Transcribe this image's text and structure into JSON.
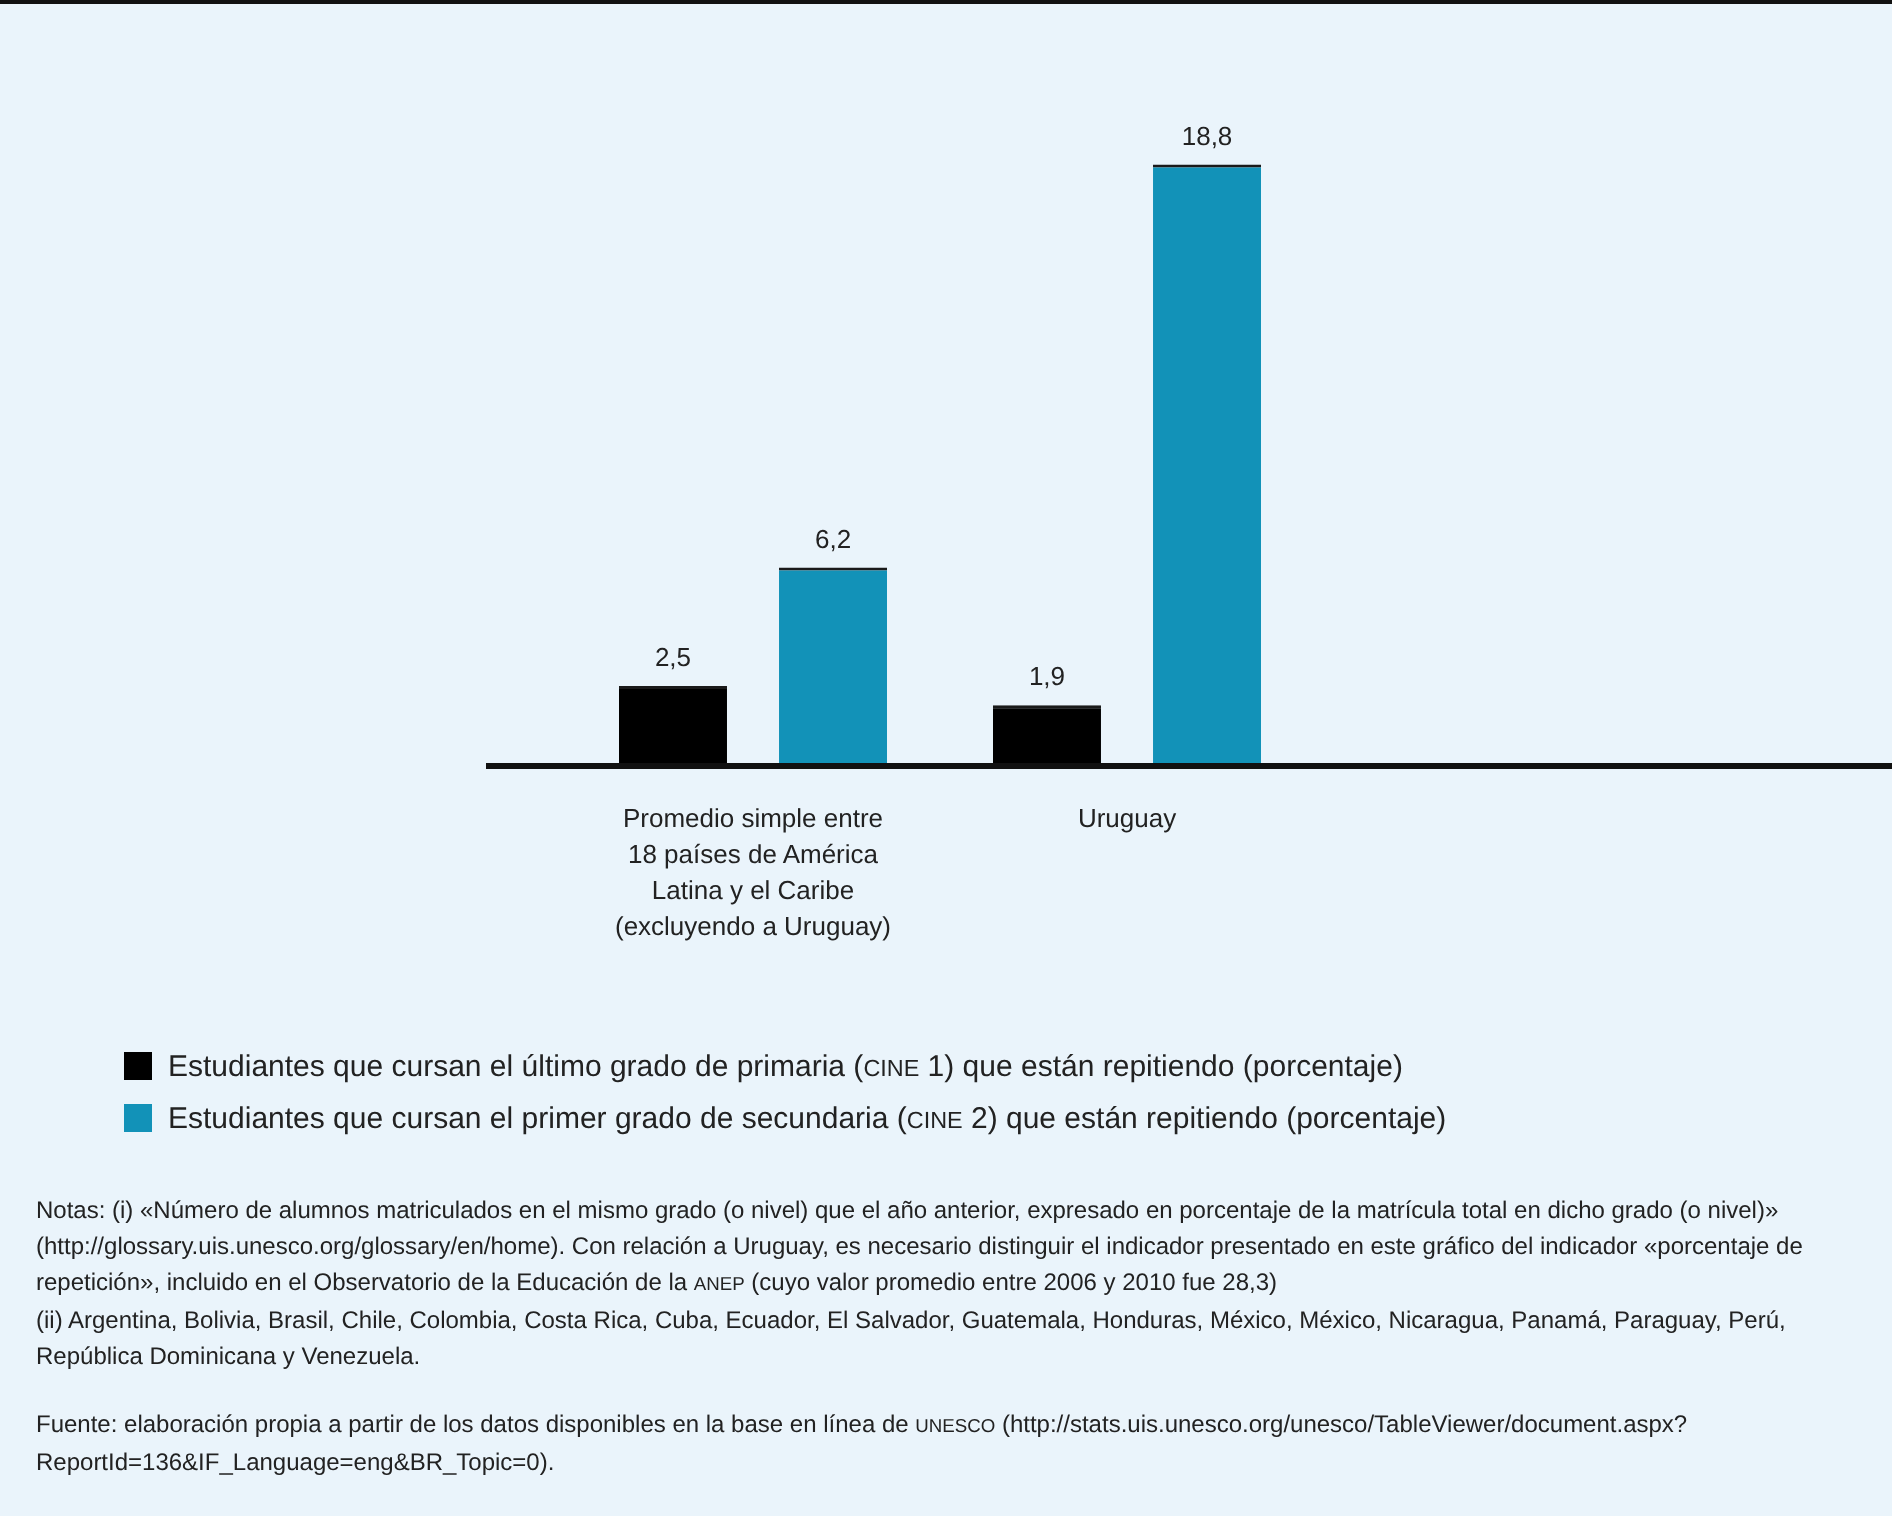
{
  "chart_data": {
    "type": "bar",
    "categories": [
      "Promedio simple entre 18 países de América Latina y el Caribe (excluyendo a Uruguay)",
      "Uruguay"
    ],
    "series": [
      {
        "name": "Estudiantes que cursan el último grado de primaria (CINE 1) que están repitiendo (porcentaje)",
        "color": "#000000",
        "values": [
          2.5,
          1.9
        ],
        "value_labels": [
          "2,5",
          "1,9"
        ]
      },
      {
        "name": "Estudiantes que cursan el primer grado de secundaria (CINE 2) que están repitiendo (porcentaje)",
        "color": "#1292b8",
        "values": [
          6.2,
          18.8
        ],
        "value_labels": [
          "6,2",
          "18,8"
        ]
      }
    ],
    "legend": "bottom",
    "annotations": [
      "Notas: (i) «Número de alumnos matriculados en el mismo grado (o nivel) que el año anterior, expresado en porcentaje de la matrícula total en dicho grado (o nivel)» (http://glossary.uis.unesco.org/glossary/en/home). Con relación a Uruguay, es necesario distinguir el indicador presentado en este gráfico del indicador «porcentaje de repetición», incluido en el Observatorio de la Educación de la ANEP (cuyo valor promedio entre 2006 y 2010 fue 28,3)",
      "(ii) Argentina, Bolivia, Brasil, Chile, Colombia, Costa Rica, Cuba, Ecuador, El Salvador, Guatemala, Honduras, México, México, Nicaragua, Panamá, Paraguay, Perú, República Dominicana y Venezuela.",
      "Fuente: elaboración propia a partir de los datos disponibles en la base en línea de UNESCO (http://stats.uis.unesco.org/unesco/TableViewer/document.aspx?ReportId=136&IF_Language=eng&BR_Topic=0)."
    ]
  }
}
